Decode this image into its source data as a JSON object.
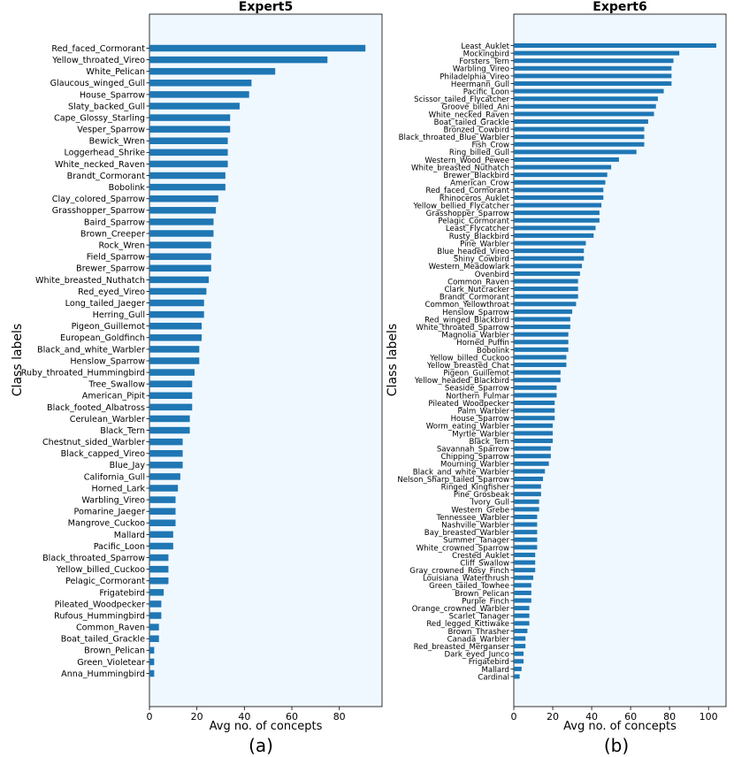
{
  "bar_color": "#1f77b4",
  "plot_bg_color": "#f0f8ff",
  "left": {
    "title": "Expert5",
    "xlabel": "Avg no. of concepts",
    "ylabel": "Class labels",
    "panel_label": "(a)"
  },
  "right": {
    "title": "Expert6",
    "xlabel": "Avg no. of concepts",
    "ylabel": "Class labels",
    "panel_label": "(b)"
  },
  "chart_data": [
    {
      "type": "bar",
      "orientation": "horizontal",
      "title": "Expert5",
      "xlabel": "Avg no. of concepts",
      "ylabel": "Class labels",
      "xlim": [
        0,
        98
      ],
      "xticks": [
        0,
        20,
        40,
        60,
        80
      ],
      "grid": false,
      "categories": [
        "Red_faced_Cormorant",
        "Yellow_throated_Vireo",
        "White_Pelican",
        "Glaucous_winged_Gull",
        "House_Sparrow",
        "Slaty_backed_Gull",
        "Cape_Glossy_Starling",
        "Vesper_Sparrow",
        "Bewick_Wren",
        "Loggerhead_Shrike",
        "White_necked_Raven",
        "Brandt_Cormorant",
        "Bobolink",
        "Clay_colored_Sparrow",
        "Grasshopper_Sparrow",
        "Baird_Sparrow",
        "Brown_Creeper",
        "Rock_Wren",
        "Field_Sparrow",
        "Brewer_Sparrow",
        "White_breasted_Nuthatch",
        "Red_eyed_Vireo",
        "Long_tailed_Jaeger",
        "Herring_Gull",
        "Pigeon_Guillemot",
        "European_Goldfinch",
        "Black_and_white_Warbler",
        "Henslow_Sparrow",
        "Ruby_throated_Hummingbird",
        "Tree_Swallow",
        "American_Pipit",
        "Black_footed_Albatross",
        "Cerulean_Warbler",
        "Black_Tern",
        "Chestnut_sided_Warbler",
        "Black_capped_Vireo",
        "Blue_Jay",
        "California_Gull",
        "Horned_Lark",
        "Warbling_Vireo",
        "Pomarine_Jaeger",
        "Mangrove_Cuckoo",
        "Mallard",
        "Pacific_Loon",
        "Black_throated_Sparrow",
        "Yellow_billed_Cuckoo",
        "Pelagic_Cormorant",
        "Frigatebird",
        "Pileated_Woodpecker",
        "Rufous_Hummingbird",
        "Common_Raven",
        "Boat_tailed_Grackle",
        "Brown_Pelican",
        "Green_Violetear",
        "Anna_Hummingbird"
      ],
      "values": [
        91,
        75,
        53,
        43,
        42,
        38,
        34,
        34,
        33,
        33,
        33,
        32,
        32,
        29,
        28,
        27,
        27,
        26,
        26,
        26,
        25,
        24,
        23,
        23,
        22,
        22,
        21,
        21,
        19,
        18,
        18,
        18,
        17,
        17,
        14,
        14,
        14,
        13,
        12,
        11,
        11,
        11,
        10,
        10,
        8,
        8,
        8,
        6,
        5,
        5,
        4,
        4,
        2,
        2,
        2
      ]
    },
    {
      "type": "bar",
      "orientation": "horizontal",
      "title": "Expert6",
      "xlabel": "Avg no. of concepts",
      "ylabel": "Class labels",
      "xlim": [
        0,
        109
      ],
      "xticks": [
        0,
        20,
        40,
        60,
        80,
        100
      ],
      "grid": false,
      "categories": [
        "Least_Auklet",
        "Mockingbird",
        "Forsters_Tern",
        "Warbling_Vireo",
        "Philadelphia_Vireo",
        "Heermann_Gull",
        "Pacific_Loon",
        "Scissor_tailed_Flycatcher",
        "Groove_billed_Ani",
        "White_necked_Raven",
        "Boat_tailed_Grackle",
        "Bronzed_Cowbird",
        "Black_throated_Blue_Warbler",
        "Fish_Crow",
        "Ring_billed_Gull",
        "Western_Wood_Pewee",
        "White_breasted_Nuthatch",
        "Brewer_Blackbird",
        "American_Crow",
        "Red_faced_Cormorant",
        "Rhinoceros_Auklet",
        "Yellow_bellied_Flycatcher",
        "Grasshopper_Sparrow",
        "Pelagic_Cormorant",
        "Least_Flycatcher",
        "Rusty_Blackbird",
        "Pine_Warbler",
        "Blue_headed_Vireo",
        "Shiny_Cowbird",
        "Western_Meadowlark",
        "Ovenbird",
        "Common_Raven",
        "Clark_Nutcracker",
        "Brandt_Cormorant",
        "Common_Yellowthroat",
        "Henslow_Sparrow",
        "Red_winged_Blackbird",
        "White_throated_Sparrow",
        "Magnolia_Warbler",
        "Horned_Puffin",
        "Bobolink",
        "Yellow_billed_Cuckoo",
        "Yellow_breasted_Chat",
        "Pigeon_Guillemot",
        "Yellow_headed_Blackbird",
        "Seaside_Sparrow",
        "Northern_Fulmar",
        "Pileated_Woodpecker",
        "Palm_Warbler",
        "House_Sparrow",
        "Worm_eating_Warbler",
        "Myrtle_Warbler",
        "Black_Tern",
        "Savannah_Sparrow",
        "Chipping_Sparrow",
        "Mourning_Warbler",
        "Black_and_white_Warbler",
        "Nelson_Sharp_tailed_Sparrow",
        "Ringed_Kingfisher",
        "Pine_Grosbeak",
        "Ivory_Gull",
        "Western_Grebe",
        "Tennessee_Warbler",
        "Nashville_Warbler",
        "Bay_breasted_Warbler",
        "Summer_Tanager",
        "White_crowned_Sparrow",
        "Crested_Auklet",
        "Cliff_Swallow",
        "Gray_crowned_Rosy_Finch",
        "Louisiana_Waterthrush",
        "Green_tailed_Towhee",
        "Brown_Pelican",
        "Purple_Finch",
        "Orange_crowned_Warbler",
        "Scarlet_Tanager",
        "Red_legged_Kittiwake",
        "Brown_Thrasher",
        "Canada_Warbler",
        "Red_breasted_Merganser",
        "Dark_eyed_Junco",
        "Frigatebird",
        "Mallard",
        "Cardinal"
      ],
      "values": [
        104,
        85,
        82,
        81,
        81,
        81,
        77,
        74,
        73,
        72,
        69,
        67,
        67,
        67,
        63,
        54,
        50,
        48,
        47,
        46,
        46,
        45,
        44,
        44,
        42,
        41,
        37,
        36,
        36,
        35,
        34,
        33,
        33,
        33,
        32,
        30,
        29,
        29,
        28,
        28,
        28,
        27,
        27,
        24,
        24,
        22,
        22,
        21,
        21,
        21,
        20,
        20,
        20,
        19,
        19,
        18,
        16,
        15,
        14,
        14,
        13,
        13,
        12,
        12,
        12,
        12,
        12,
        11,
        11,
        11,
        10,
        9,
        9,
        9,
        8,
        8,
        8,
        7,
        6,
        6,
        5,
        5,
        4,
        3
      ]
    }
  ]
}
